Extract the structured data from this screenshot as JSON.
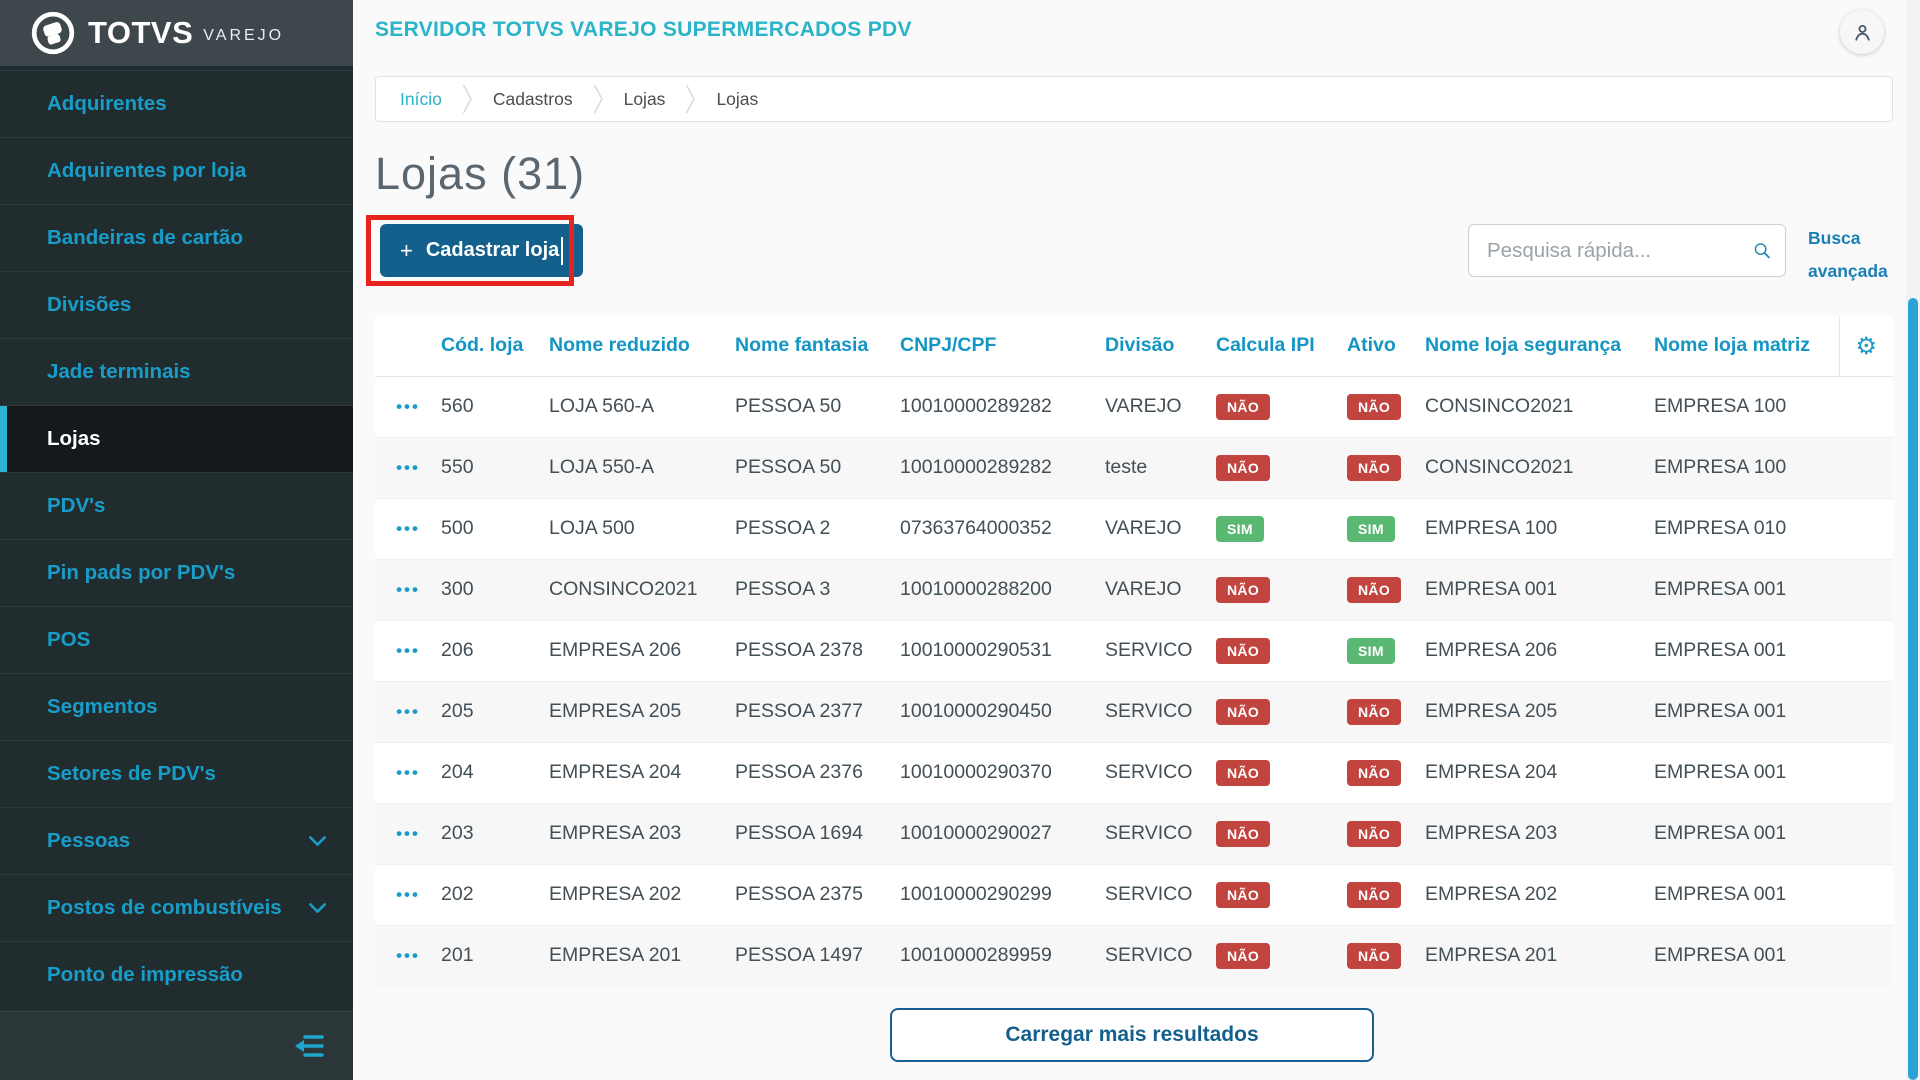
{
  "brand": {
    "name": "TOTVS",
    "sub": "VAREJO"
  },
  "sidebar": {
    "items": [
      {
        "label": "Adquirentes"
      },
      {
        "label": "Adquirentes por loja"
      },
      {
        "label": "Bandeiras de cartão"
      },
      {
        "label": "Divisões"
      },
      {
        "label": "Jade terminais"
      },
      {
        "label": "Lojas",
        "active": true
      },
      {
        "label": "PDV's"
      },
      {
        "label": "Pin pads por PDV's"
      },
      {
        "label": "POS"
      },
      {
        "label": "Segmentos"
      },
      {
        "label": "Setores de PDV's"
      },
      {
        "label": "Pessoas",
        "expandable": true
      },
      {
        "label": "Postos de combustíveis",
        "expandable": true
      },
      {
        "label": "Ponto de impressão"
      }
    ]
  },
  "header": {
    "title": "SERVIDOR TOTVS VAREJO SUPERMERCADOS PDV"
  },
  "breadcrumb": {
    "items": [
      "Início",
      "Cadastros",
      "Lojas",
      "Lojas"
    ]
  },
  "page": {
    "title": "Lojas (31)"
  },
  "toolbar": {
    "add_button": {
      "plus": "+",
      "label": "Cadastrar loja"
    },
    "search": {
      "placeholder": "Pesquisa rápida...",
      "value": ""
    },
    "advanced_search": "Busca avançada"
  },
  "icons": {
    "row_actions": "•••",
    "gear": "⚙"
  },
  "table": {
    "columns": [
      {
        "key": "cod",
        "label": "Cód. loja"
      },
      {
        "key": "nome_reduzido",
        "label": "Nome reduzido"
      },
      {
        "key": "nome_fantasia",
        "label": "Nome fantasia"
      },
      {
        "key": "cnpj",
        "label": "CNPJ/CPF"
      },
      {
        "key": "divisao",
        "label": "Divisão"
      },
      {
        "key": "calcula_ipi",
        "label": "Calcula IPI"
      },
      {
        "key": "ativo",
        "label": "Ativo"
      },
      {
        "key": "nome_seguranca",
        "label": "Nome loja segurança"
      },
      {
        "key": "nome_matriz",
        "label": "Nome loja matriz"
      }
    ],
    "rows": [
      {
        "cod": "560",
        "nome_reduzido": "LOJA 560-A",
        "nome_fantasia": "PESSOA 50",
        "cnpj": "10010000289282",
        "divisao": "VAREJO",
        "calcula_ipi": "NÃO",
        "ativo": "NÃO",
        "nome_seguranca": "CONSINCO2021",
        "nome_matriz": "EMPRESA 100"
      },
      {
        "cod": "550",
        "nome_reduzido": "LOJA 550-A",
        "nome_fantasia": "PESSOA 50",
        "cnpj": "10010000289282",
        "divisao": "teste",
        "calcula_ipi": "NÃO",
        "ativo": "NÃO",
        "nome_seguranca": "CONSINCO2021",
        "nome_matriz": "EMPRESA 100"
      },
      {
        "cod": "500",
        "nome_reduzido": "LOJA 500",
        "nome_fantasia": "PESSOA 2",
        "cnpj": "07363764000352",
        "divisao": "VAREJO",
        "calcula_ipi": "SIM",
        "ativo": "SIM",
        "nome_seguranca": "EMPRESA 100",
        "nome_matriz": "EMPRESA 010"
      },
      {
        "cod": "300",
        "nome_reduzido": "CONSINCO2021",
        "nome_fantasia": "PESSOA 3",
        "cnpj": "10010000288200",
        "divisao": "VAREJO",
        "calcula_ipi": "NÃO",
        "ativo": "NÃO",
        "nome_seguranca": "EMPRESA 001",
        "nome_matriz": "EMPRESA 001"
      },
      {
        "cod": "206",
        "nome_reduzido": "EMPRESA 206",
        "nome_fantasia": "PESSOA 2378",
        "cnpj": "10010000290531",
        "divisao": "SERVICO",
        "calcula_ipi": "NÃO",
        "ativo": "SIM",
        "nome_seguranca": "EMPRESA 206",
        "nome_matriz": "EMPRESA 001"
      },
      {
        "cod": "205",
        "nome_reduzido": "EMPRESA 205",
        "nome_fantasia": "PESSOA 2377",
        "cnpj": "10010000290450",
        "divisao": "SERVICO",
        "calcula_ipi": "NÃO",
        "ativo": "NÃO",
        "nome_seguranca": "EMPRESA 205",
        "nome_matriz": "EMPRESA 001"
      },
      {
        "cod": "204",
        "nome_reduzido": "EMPRESA 204",
        "nome_fantasia": "PESSOA 2376",
        "cnpj": "10010000290370",
        "divisao": "SERVICO",
        "calcula_ipi": "NÃO",
        "ativo": "NÃO",
        "nome_seguranca": "EMPRESA 204",
        "nome_matriz": "EMPRESA 001"
      },
      {
        "cod": "203",
        "nome_reduzido": "EMPRESA 203",
        "nome_fantasia": "PESSOA 1694",
        "cnpj": "10010000290027",
        "divisao": "SERVICO",
        "calcula_ipi": "NÃO",
        "ativo": "NÃO",
        "nome_seguranca": "EMPRESA 203",
        "nome_matriz": "EMPRESA 001"
      },
      {
        "cod": "202",
        "nome_reduzido": "EMPRESA 202",
        "nome_fantasia": "PESSOA 2375",
        "cnpj": "10010000290299",
        "divisao": "SERVICO",
        "calcula_ipi": "NÃO",
        "ativo": "NÃO",
        "nome_seguranca": "EMPRESA 202",
        "nome_matriz": "EMPRESA 001"
      },
      {
        "cod": "201",
        "nome_reduzido": "EMPRESA 201",
        "nome_fantasia": "PESSOA 1497",
        "cnpj": "10010000289959",
        "divisao": "SERVICO",
        "calcula_ipi": "NÃO",
        "ativo": "NÃO",
        "nome_seguranca": "EMPRESA 201",
        "nome_matriz": "EMPRESA 001"
      }
    ]
  },
  "footer": {
    "load_more": "Carregar mais resultados"
  },
  "colors": {
    "sidebar_bg": "#212c2f",
    "logo_band_bg": "#3d474c",
    "sidebar_link": "#189dc9",
    "active_accent": "#2bb6d8",
    "header_teal": "#29b4c9",
    "button_blue": "#14608c",
    "annotation_red": "#e6231e",
    "table_header_blue": "#1496c4",
    "badge_red": "#c2443e",
    "badge_green": "#5bb873",
    "link_blue": "#1a7fb5",
    "scrollbar_blue": "#2da2d5"
  }
}
